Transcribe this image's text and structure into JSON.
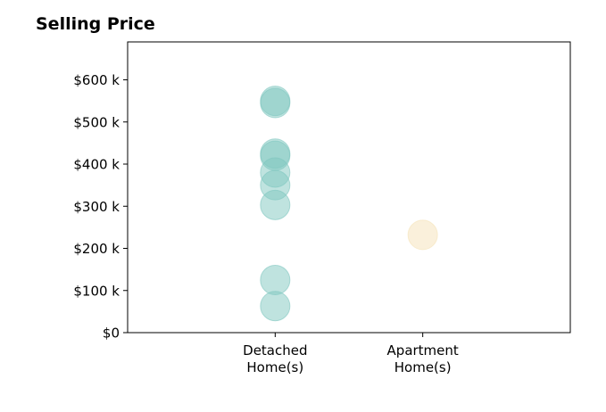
{
  "chart_data": {
    "type": "scatter",
    "title": "Selling Price",
    "categories": [
      "Detached\nHome(s)",
      "Apartment\nHome(s)"
    ],
    "y_ticks": [
      {
        "value": 0,
        "label": "$0"
      },
      {
        "value": 100000,
        "label": "$100 k"
      },
      {
        "value": 200000,
        "label": "$200 k"
      },
      {
        "value": 300000,
        "label": "$300 k"
      },
      {
        "value": 400000,
        "label": "$400 k"
      },
      {
        "value": 500000,
        "label": "$500 k"
      },
      {
        "value": 600000,
        "label": "$600 k"
      }
    ],
    "ylim": [
      0,
      690000
    ],
    "xlim": [
      -1,
      2
    ],
    "grid": false,
    "series": [
      {
        "category_index": 0,
        "color": "#7fc7bf",
        "values": [
          550000,
          545000,
          425000,
          420000,
          380000,
          350000,
          303000,
          125000,
          63000
        ]
      },
      {
        "category_index": 1,
        "color": "#f5e2b8",
        "values": [
          232000
        ]
      }
    ]
  }
}
